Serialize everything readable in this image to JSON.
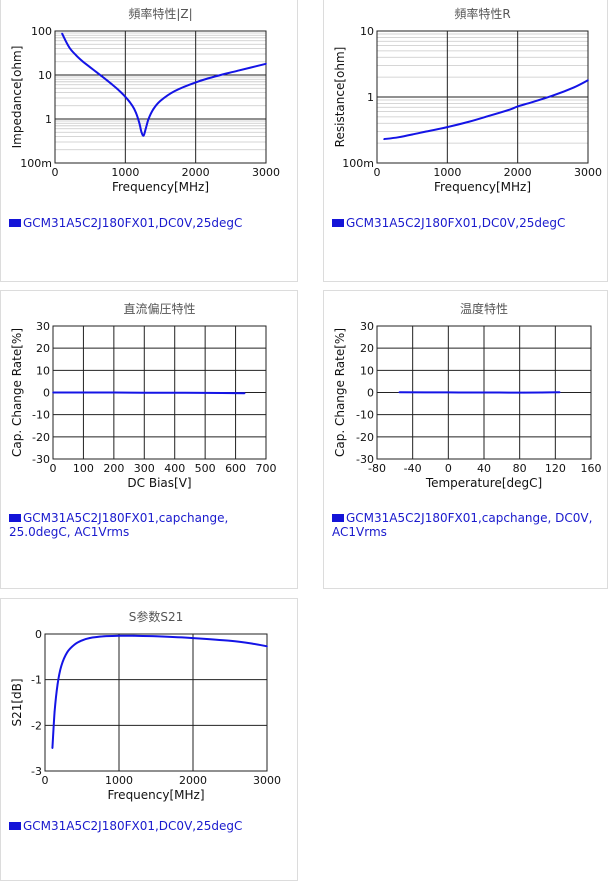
{
  "panels": [
    {
      "legend": [
        "GCM31A5C2J180FX01,DC0V,25degC"
      ],
      "chart_data": {
        "type": "line",
        "title": "頻率特性|Z|",
        "xlabel": "Frequency[MHz]",
        "ylabel": "Impedance[ohm]",
        "xlim": [
          0,
          3000
        ],
        "ylim": [
          0.1,
          100
        ],
        "yscale": "log",
        "xticks": [
          0,
          1000,
          2000,
          3000
        ],
        "xtick_labels": [
          "0",
          "1000",
          "2000",
          "3000"
        ],
        "yticks": [
          0.1,
          1,
          10,
          100
        ],
        "ytick_labels": [
          "100m",
          "1",
          "10",
          "100"
        ],
        "grid": true,
        "series": [
          {
            "color": "#1414e6",
            "x": [
              100,
              200,
              300,
              400,
              500,
              600,
              700,
              800,
              900,
              1000,
              1100,
              1150,
              1200,
              1230,
              1260,
              1290,
              1330,
              1400,
              1500,
              1700,
              2000,
              2300,
              2600,
              3000
            ],
            "y": [
              88,
              43,
              28,
              20,
              15,
              11.3,
              8.5,
              6.3,
              4.6,
              3.2,
              2.0,
              1.4,
              0.8,
              0.5,
              0.42,
              0.6,
              1.0,
              1.7,
              2.6,
              4.3,
              6.8,
              9.5,
              12.5,
              18
            ]
          }
        ]
      }
    },
    {
      "legend": [
        "GCM31A5C2J180FX01,DC0V,25degC"
      ],
      "chart_data": {
        "type": "line",
        "title": "頻率特性R",
        "xlabel": "Frequency[MHz]",
        "ylabel": "Resistance[ohm]",
        "xlim": [
          0,
          3000
        ],
        "ylim": [
          0.1,
          10
        ],
        "yscale": "log",
        "xticks": [
          0,
          1000,
          2000,
          3000
        ],
        "xtick_labels": [
          "0",
          "1000",
          "2000",
          "3000"
        ],
        "yticks": [
          0.1,
          1,
          10
        ],
        "ytick_labels": [
          "100m",
          "1",
          "10"
        ],
        "grid": true,
        "series": [
          {
            "color": "#1414e6",
            "x": [
              100,
              300,
              500,
              700,
              1000,
              1300,
              1600,
              1900,
              2000,
              2200,
              2500,
              2800,
              3000
            ],
            "y": [
              0.23,
              0.245,
              0.27,
              0.3,
              0.35,
              0.42,
              0.52,
              0.65,
              0.72,
              0.83,
              1.05,
              1.4,
              1.8
            ]
          }
        ]
      }
    },
    {
      "legend": [
        "GCM31A5C2J180FX01,capchange,",
        "25.0degC, AC1Vrms"
      ],
      "chart_data": {
        "type": "line",
        "title": "直流偏圧特性",
        "xlabel": "DC Bias[V]",
        "ylabel": "Cap. Change Rate[%]",
        "xlim": [
          0,
          700
        ],
        "ylim": [
          -30,
          30
        ],
        "xticks": [
          0,
          100,
          200,
          300,
          400,
          500,
          600,
          700
        ],
        "xtick_labels": [
          "0",
          "100",
          "200",
          "300",
          "400",
          "500",
          "600",
          "700"
        ],
        "yticks": [
          -30,
          -20,
          -10,
          0,
          10,
          20,
          30
        ],
        "ytick_labels": [
          "-30",
          "-20",
          "-10",
          "0",
          "10",
          "20",
          "30"
        ],
        "grid": true,
        "series": [
          {
            "color": "#1414e6",
            "x": [
              0,
              100,
              200,
              300,
              400,
              500,
              630
            ],
            "y": [
              0,
              0,
              0,
              -0.1,
              -0.1,
              -0.2,
              -0.3
            ]
          }
        ]
      }
    },
    {
      "legend": [
        "GCM31A5C2J180FX01,capchange, DC0V,",
        "AC1Vrms"
      ],
      "chart_data": {
        "type": "line",
        "title": "温度特性",
        "xlabel": "Temperature[degC]",
        "ylabel": "Cap. Change Rate[%]",
        "xlim": [
          -80,
          160
        ],
        "ylim": [
          -30,
          30
        ],
        "xticks": [
          -80,
          -40,
          0,
          40,
          80,
          120,
          160
        ],
        "xtick_labels": [
          "-80",
          "-40",
          "0",
          "40",
          "80",
          "120",
          "160"
        ],
        "yticks": [
          -30,
          -20,
          -10,
          0,
          10,
          20,
          30
        ],
        "ytick_labels": [
          "-30",
          "-20",
          "-10",
          "0",
          "10",
          "20",
          "30"
        ],
        "grid": true,
        "series": [
          {
            "color": "#1414e6",
            "x": [
              -55,
              0,
              25,
              85,
              125
            ],
            "y": [
              0.1,
              0.05,
              0,
              -0.05,
              0.1
            ]
          }
        ]
      }
    },
    {
      "legend": [
        "GCM31A5C2J180FX01,DC0V,25degC"
      ],
      "chart_data": {
        "type": "line",
        "title": "S参数S21",
        "xlabel": "Frequency[MHz]",
        "ylabel": "S21[dB]",
        "xlim": [
          0,
          3000
        ],
        "ylim": [
          -3,
          0
        ],
        "xticks": [
          0,
          1000,
          2000,
          3000
        ],
        "xtick_labels": [
          "0",
          "1000",
          "2000",
          "3000"
        ],
        "yticks": [
          -3,
          -2,
          -1,
          0
        ],
        "ytick_labels": [
          "-3",
          "-2",
          "-1",
          "0"
        ],
        "grid": true,
        "series": [
          {
            "color": "#1414e6",
            "x": [
              100,
              130,
              170,
              220,
              300,
              400,
              500,
              600,
              800,
              1000,
              1200,
              1500,
              2000,
              2500,
              2800,
              3000
            ],
            "y": [
              -2.5,
              -1.7,
              -1.1,
              -0.7,
              -0.4,
              -0.23,
              -0.14,
              -0.09,
              -0.05,
              -0.04,
              -0.04,
              -0.05,
              -0.09,
              -0.15,
              -0.21,
              -0.27
            ]
          }
        ]
      }
    }
  ]
}
